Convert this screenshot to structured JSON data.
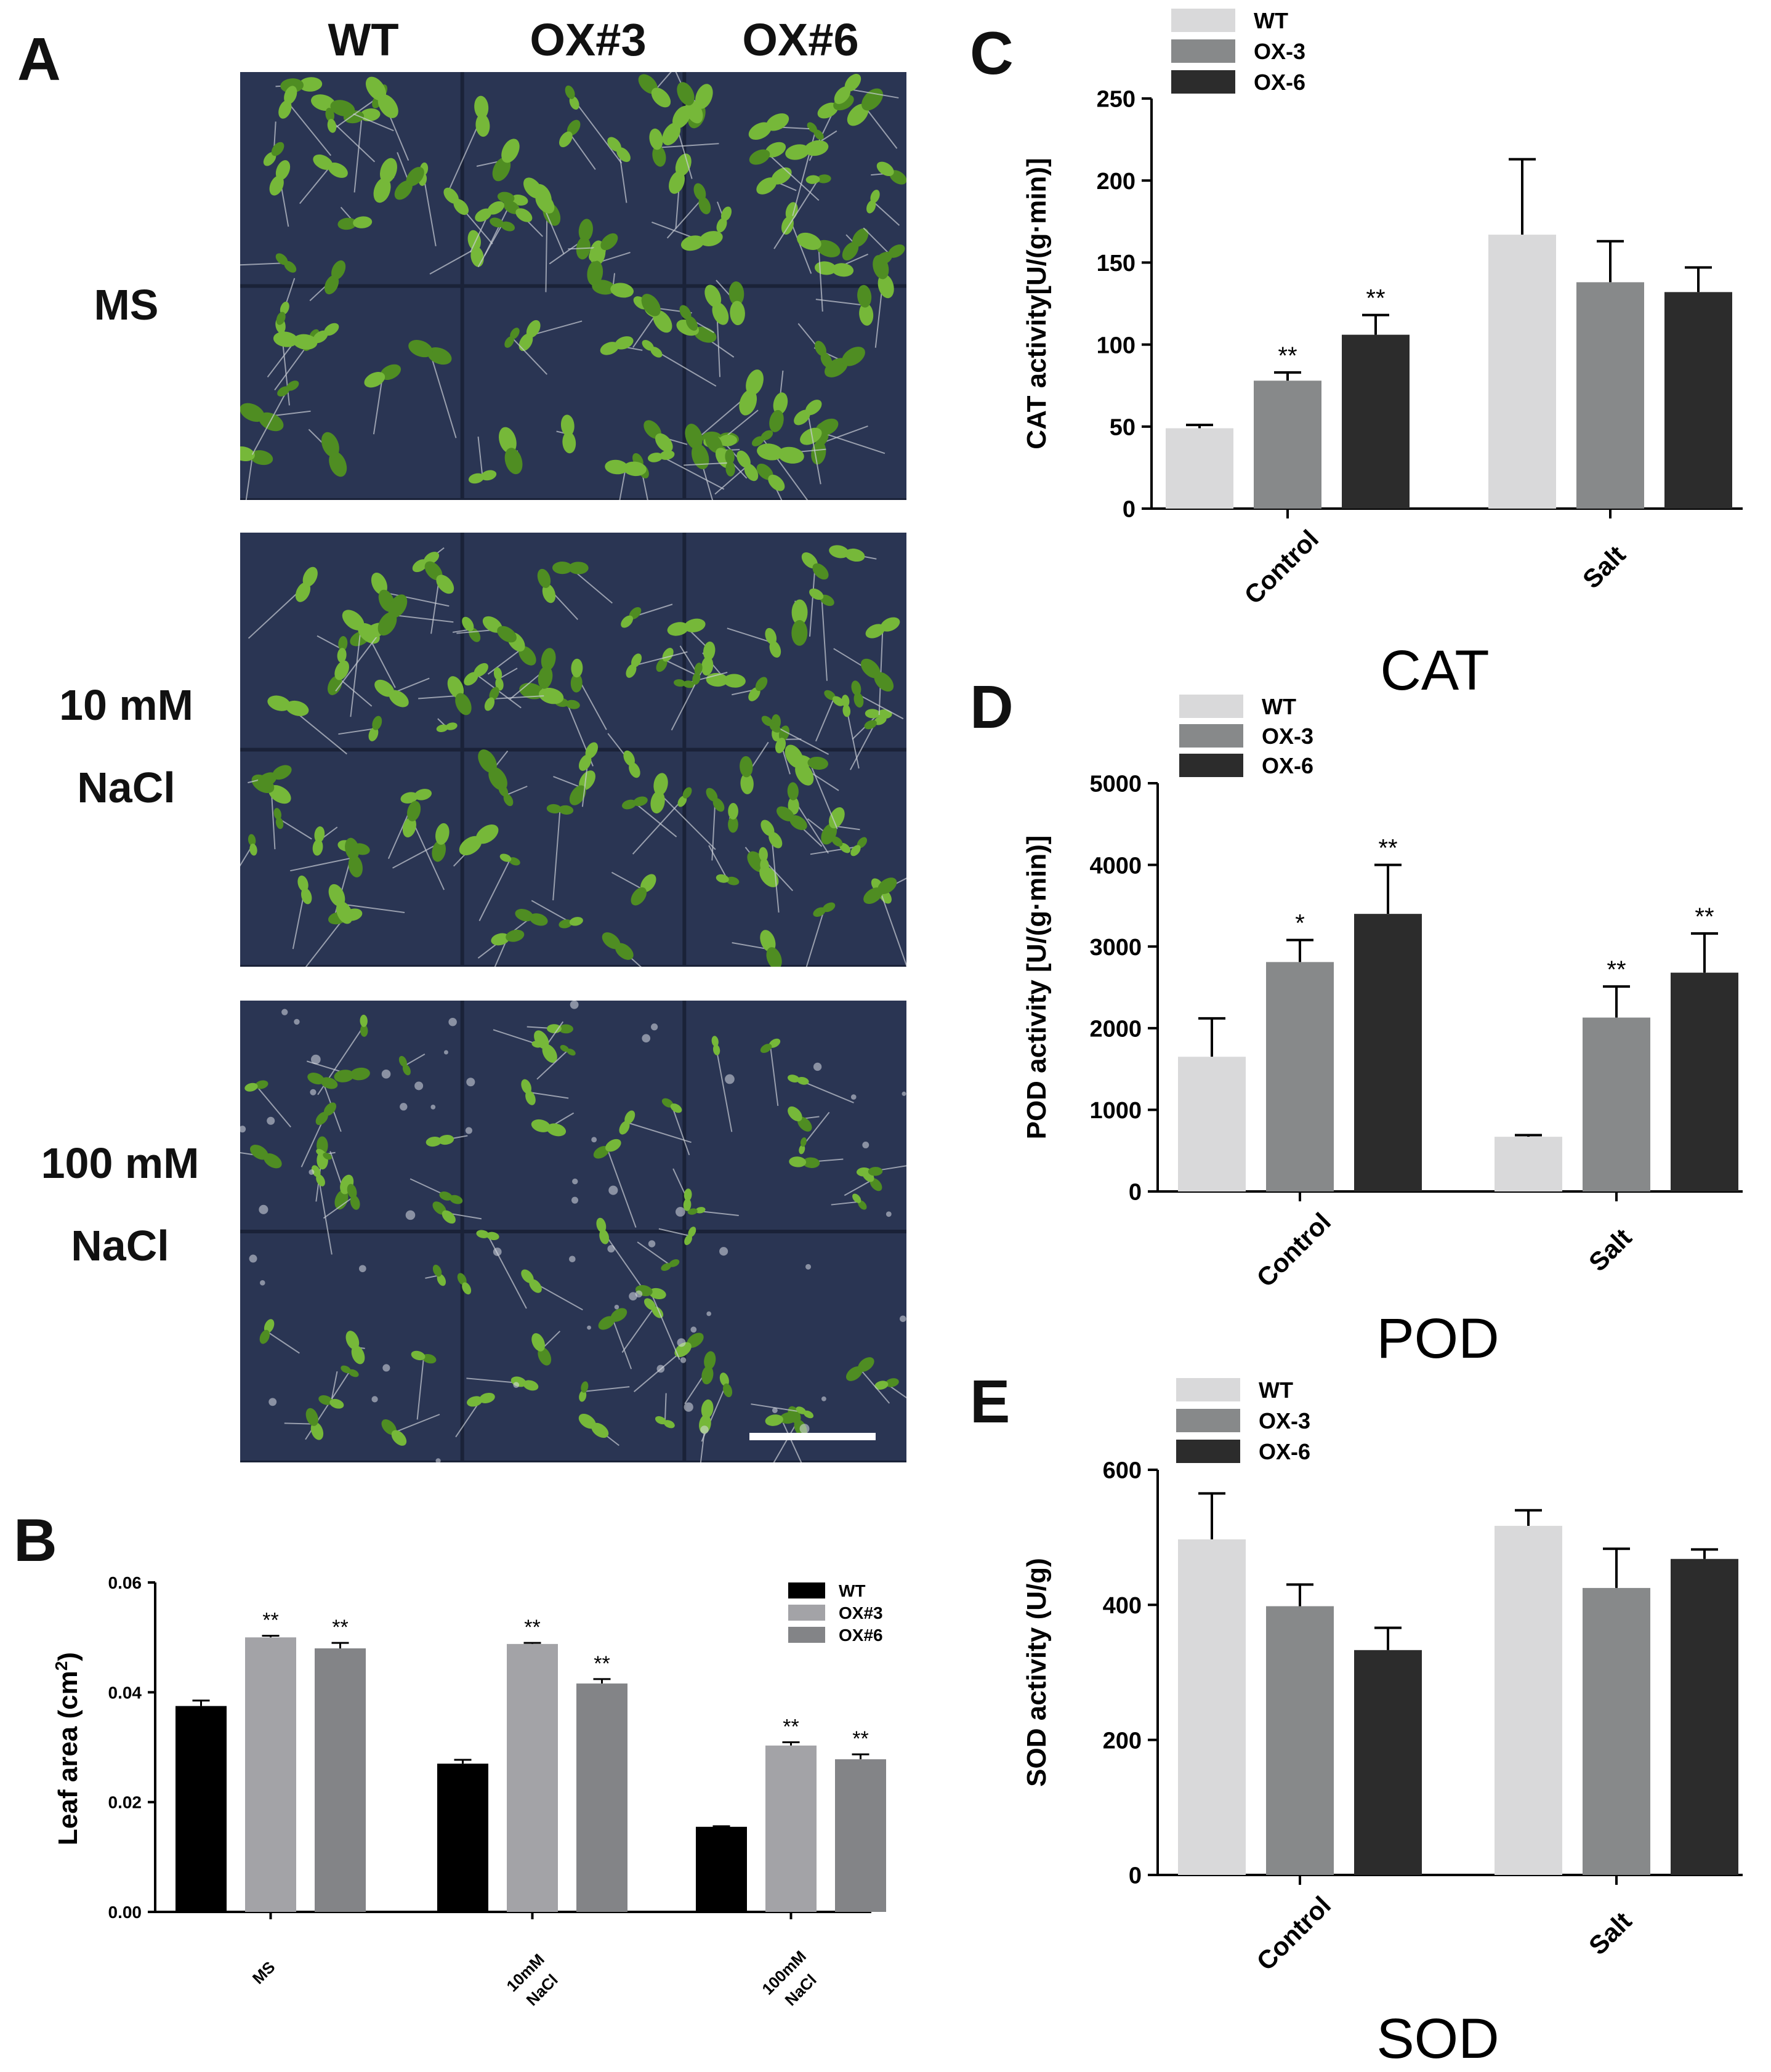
{
  "panel_a": {
    "letter": "A",
    "columns": [
      "WT",
      "OX#3",
      "OX#6"
    ],
    "rows": [
      {
        "line1": "MS",
        "line2": ""
      },
      {
        "line1": "10 mM",
        "line2": "NaCl"
      },
      {
        "line1": "100 mM",
        "line2": "NaCl"
      }
    ],
    "colors": {
      "background": "#2a3553",
      "grid": "#1a2238",
      "leaf": "#76b839",
      "leaf_dark": "#4f8d22",
      "root": "#c9cdd6",
      "scale_bar": "#ffffff"
    }
  },
  "panel_b": {
    "letter": "B",
    "ylabel_main": "Leaf area (cm",
    "ylabel_sup": "2",
    "ylabel_end": ")",
    "legend": [
      "WT",
      "OX#3",
      "OX#6"
    ],
    "colors": [
      "#000000",
      "#a3a3a7",
      "#838487"
    ],
    "tick_labels": [
      "0.00",
      "0.02",
      "0.04",
      "0.06"
    ],
    "group_labels": [
      {
        "line1": "MS",
        "line2": ""
      },
      {
        "line1": "10mM",
        "line2": "NaCl"
      },
      {
        "line1": "100mM",
        "line2": "NaCl"
      }
    ]
  },
  "panel_c": {
    "letter": "C",
    "ylabel": "CAT activity[U/(g·min)]",
    "legend": [
      "WT",
      "OX-3",
      "OX-6"
    ],
    "colors": [
      "#d9d9da",
      "#87898a",
      "#2c2c2c"
    ],
    "tick_labels": [
      "0",
      "50",
      "100",
      "150",
      "200",
      "250"
    ],
    "categories": [
      "Control",
      "Salt"
    ],
    "bottom_title": "CAT"
  },
  "panel_d": {
    "letter": "D",
    "ylabel": "POD activity [U/(g·min)]",
    "legend": [
      "WT",
      "OX-3",
      "OX-6"
    ],
    "colors": [
      "#d9d9da",
      "#87898a",
      "#2c2c2c"
    ],
    "tick_labels": [
      "0",
      "1000",
      "2000",
      "3000",
      "4000",
      "5000"
    ],
    "categories": [
      "Control",
      "Salt"
    ],
    "bottom_title": "POD"
  },
  "panel_e": {
    "letter": "E",
    "ylabel": "SOD activity (U/g)",
    "legend": [
      "WT",
      "OX-3",
      "OX-6"
    ],
    "colors": [
      "#d9d9da",
      "#87898a",
      "#2c2c2c"
    ],
    "tick_labels": [
      "0",
      "200",
      "400",
      "600"
    ],
    "categories": [
      "Control",
      "Salt"
    ],
    "bottom_title": "SOD"
  },
  "chart_data": [
    {
      "panel": "B",
      "type": "bar",
      "categories": [
        "MS",
        "10mM NaCl",
        "100mM NaCl"
      ],
      "ylabel": "Leaf area (cm2)",
      "ylim": [
        0,
        0.06
      ],
      "legend_position": "top-right",
      "series": [
        {
          "name": "WT",
          "values": [
            0.0375,
            0.027,
            0.0155
          ],
          "errors": [
            0.001,
            0.0007,
            0.0001
          ],
          "marks": [
            "",
            "",
            ""
          ]
        },
        {
          "name": "OX#3",
          "values": [
            0.05,
            0.0488,
            0.0303
          ],
          "errors": [
            0.0003,
            0.0002,
            0.0006
          ],
          "marks": [
            "**",
            "**",
            "**"
          ]
        },
        {
          "name": "OX#6",
          "values": [
            0.048,
            0.0416,
            0.0278
          ],
          "errors": [
            0.001,
            0.0008,
            0.0009
          ],
          "marks": [
            "**",
            "**",
            "**"
          ]
        }
      ]
    },
    {
      "panel": "C",
      "type": "bar",
      "categories": [
        "Control",
        "Salt"
      ],
      "ylabel": "CAT activity[U/(g·min)]",
      "ylim": [
        0,
        250
      ],
      "legend_position": "top-left",
      "series": [
        {
          "name": "WT",
          "values": [
            49,
            167
          ],
          "errors": [
            2,
            46
          ],
          "marks": [
            "",
            ""
          ]
        },
        {
          "name": "OX-3",
          "values": [
            78,
            138
          ],
          "errors": [
            5,
            25
          ],
          "marks": [
            "**",
            ""
          ]
        },
        {
          "name": "OX-6",
          "values": [
            106,
            132
          ],
          "errors": [
            12,
            15
          ],
          "marks": [
            "**",
            ""
          ]
        }
      ]
    },
    {
      "panel": "D",
      "type": "bar",
      "categories": [
        "Control",
        "Salt"
      ],
      "ylabel": "POD activity [U/(g·min)]",
      "ylim": [
        0,
        5000
      ],
      "legend_position": "top-left",
      "series": [
        {
          "name": "WT",
          "values": [
            1650,
            670
          ],
          "errors": [
            470,
            20
          ],
          "marks": [
            "",
            ""
          ]
        },
        {
          "name": "OX-3",
          "values": [
            2810,
            2130
          ],
          "errors": [
            270,
            380
          ],
          "marks": [
            "*",
            "**"
          ]
        },
        {
          "name": "OX-6",
          "values": [
            3400,
            2680
          ],
          "errors": [
            600,
            480
          ],
          "marks": [
            "**",
            "**"
          ]
        }
      ]
    },
    {
      "panel": "E",
      "type": "bar",
      "categories": [
        "Control",
        "Salt"
      ],
      "ylabel": "SOD activity (U/g)",
      "ylim": [
        0,
        600
      ],
      "legend_position": "top-left",
      "series": [
        {
          "name": "WT",
          "values": [
            497,
            517
          ],
          "errors": [
            68,
            23
          ],
          "marks": [
            "",
            ""
          ]
        },
        {
          "name": "OX-3",
          "values": [
            398,
            425
          ],
          "errors": [
            32,
            58
          ],
          "marks": [
            "",
            ""
          ]
        },
        {
          "name": "OX-6",
          "values": [
            333,
            468
          ],
          "errors": [
            33,
            14
          ],
          "marks": [
            "",
            ""
          ]
        }
      ]
    }
  ]
}
